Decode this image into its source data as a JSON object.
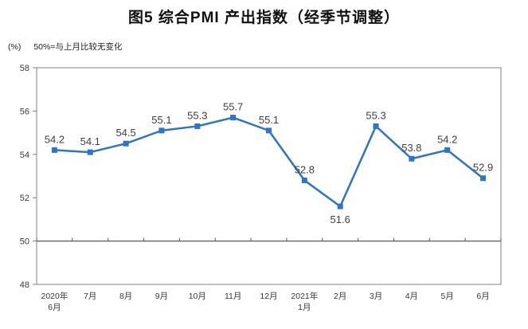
{
  "chart_data": {
    "type": "line",
    "title": "图5 综合PMI 产出指数（经季节调整）",
    "unit": "(%)",
    "note": "50%=与上月比较无变化",
    "categories": [
      "2020年\n6月",
      "7月",
      "8月",
      "9月",
      "10月",
      "11月",
      "12月",
      "2021年\n1月",
      "2月",
      "3月",
      "4月",
      "5月",
      "6月"
    ],
    "values": [
      54.2,
      54.1,
      54.5,
      55.1,
      55.3,
      55.7,
      55.1,
      52.8,
      51.6,
      55.3,
      53.8,
      54.2,
      52.9
    ],
    "ylim": [
      48,
      58
    ],
    "yticks": [
      48,
      50,
      52,
      54,
      56,
      58
    ],
    "reference_line": 50,
    "label_below_indices": [
      8
    ],
    "series_color": "#2E74C8",
    "axis_color": "#808080",
    "reference_line_color": "#595959",
    "label_color": "#404040",
    "tick_text_color": "#3a3a3a",
    "legend": "none",
    "grid": "off"
  }
}
